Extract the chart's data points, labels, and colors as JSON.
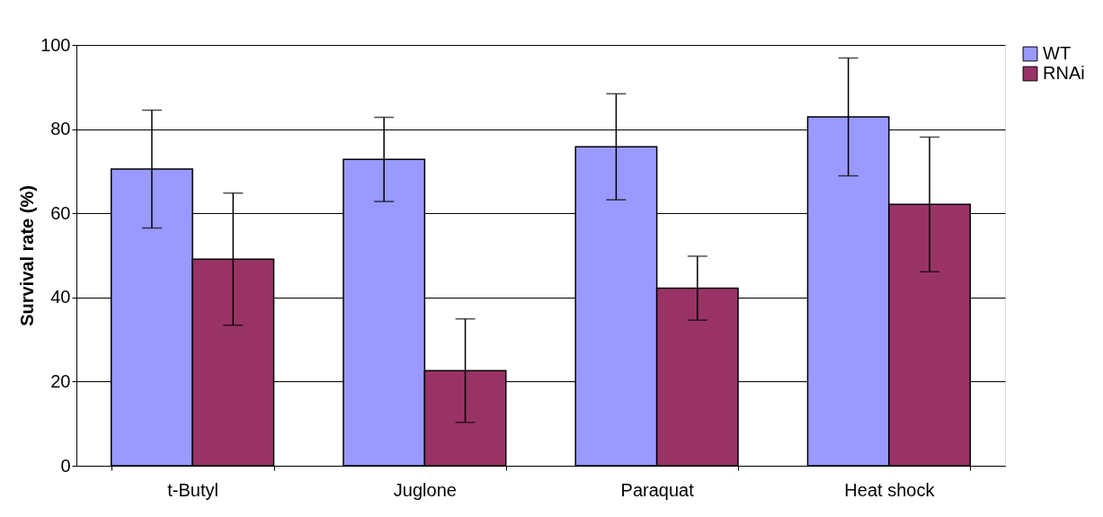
{
  "chart_data": {
    "type": "bar",
    "ylabel": "Survival rate (%)",
    "categories": [
      "t-Butyl",
      "Juglone",
      "Paraquat",
      "Heat shock"
    ],
    "series": [
      {
        "name": "WT",
        "color": "#9999ff",
        "values": [
          70.5,
          72.8,
          75.8,
          82.9
        ],
        "errors": [
          14,
          10,
          12.6,
          14
        ]
      },
      {
        "name": "RNAi",
        "color": "#993366",
        "values": [
          49.1,
          22.6,
          42.2,
          62.1
        ],
        "errors": [
          15.7,
          12.3,
          7.6,
          16
        ]
      }
    ],
    "ylim": [
      0,
      100
    ],
    "yticks": [
      0,
      20,
      40,
      60,
      80,
      100
    ],
    "grid": "y",
    "legend": "right"
  }
}
